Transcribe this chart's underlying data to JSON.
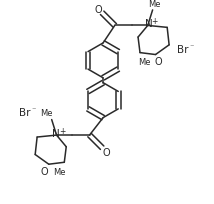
{
  "bg_color": "#ffffff",
  "line_color": "#2a2a2a",
  "lw": 1.1,
  "figsize": [
    2.14,
    2.05
  ],
  "dpi": 100,
  "xlim": [
    0,
    214
  ],
  "ylim": [
    0,
    205
  ]
}
